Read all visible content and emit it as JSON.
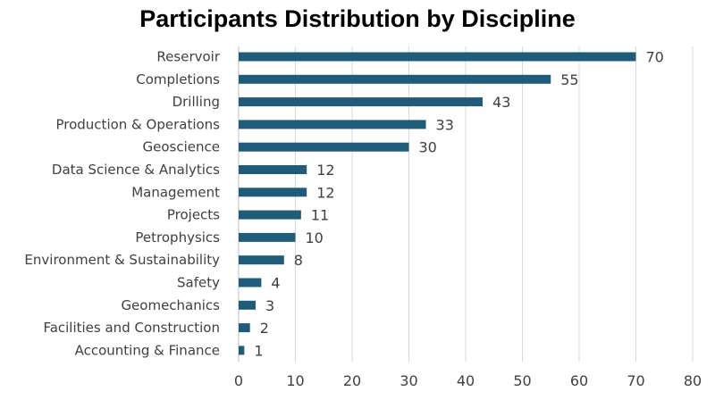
{
  "chart_data": {
    "type": "bar",
    "orientation": "horizontal",
    "title": "Participants Distribution by Discipline",
    "xlabel": "",
    "ylabel": "",
    "xlim": [
      0,
      80
    ],
    "xticks": [
      0,
      10,
      20,
      30,
      40,
      50,
      60,
      70,
      80
    ],
    "grid": true,
    "bar_color": "#1F5C7A",
    "grid_color": "#D9D9D9",
    "categories": [
      "Reservoir",
      "Completions",
      "Drilling",
      "Production & Operations",
      "Geoscience",
      "Data Science & Analytics",
      "Management",
      "Projects",
      "Petrophysics",
      "Environment & Sustainability",
      "Safety",
      "Geomechanics",
      "Facilities and Construction",
      "Accounting & Finance"
    ],
    "values": [
      70,
      55,
      43,
      33,
      30,
      12,
      12,
      11,
      10,
      8,
      4,
      3,
      2,
      1
    ]
  }
}
